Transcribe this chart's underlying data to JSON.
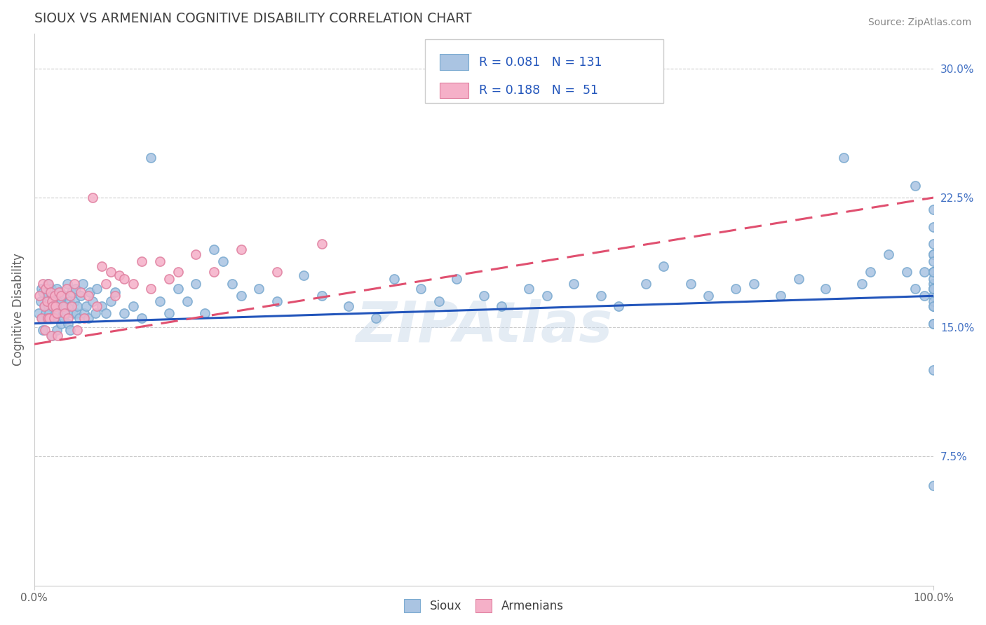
{
  "title": "SIOUX VS ARMENIAN COGNITIVE DISABILITY CORRELATION CHART",
  "source": "Source: ZipAtlas.com",
  "ylabel": "Cognitive Disability",
  "xlim": [
    0,
    1
  ],
  "ylim": [
    0,
    0.32
  ],
  "xticks": [
    0.0,
    1.0
  ],
  "xtick_labels": [
    "0.0%",
    "100.0%"
  ],
  "yticks": [
    0.075,
    0.15,
    0.225,
    0.3
  ],
  "ytick_labels": [
    "7.5%",
    "15.0%",
    "22.5%",
    "30.0%"
  ],
  "sioux_color": "#aac4e2",
  "sioux_edge_color": "#7aaad0",
  "armenian_color": "#f5b0c8",
  "armenian_edge_color": "#e080a0",
  "sioux_line_color": "#2255bb",
  "armenian_line_color": "#e05070",
  "R_sioux": 0.081,
  "N_sioux": 131,
  "R_armenian": 0.188,
  "N_armenian": 51,
  "legend_label_sioux": "Sioux",
  "legend_label_armenian": "Armenians",
  "watermark": "ZIPAtlas",
  "background_color": "#ffffff",
  "grid_color": "#cccccc",
  "title_color": "#404040",
  "sioux_line_start_y": 0.152,
  "sioux_line_end_y": 0.168,
  "armenian_line_start_y": 0.14,
  "armenian_line_end_y": 0.225,
  "sioux_x": [
    0.005,
    0.007,
    0.008,
    0.009,
    0.01,
    0.01,
    0.012,
    0.013,
    0.014,
    0.015,
    0.015,
    0.016,
    0.017,
    0.018,
    0.019,
    0.02,
    0.02,
    0.021,
    0.022,
    0.023,
    0.024,
    0.025,
    0.025,
    0.026,
    0.027,
    0.028,
    0.029,
    0.03,
    0.031,
    0.032,
    0.033,
    0.034,
    0.035,
    0.036,
    0.037,
    0.038,
    0.039,
    0.04,
    0.041,
    0.042,
    0.043,
    0.045,
    0.046,
    0.047,
    0.048,
    0.05,
    0.052,
    0.054,
    0.056,
    0.058,
    0.06,
    0.062,
    0.065,
    0.068,
    0.07,
    0.075,
    0.08,
    0.085,
    0.09,
    0.1,
    0.11,
    0.12,
    0.13,
    0.14,
    0.15,
    0.16,
    0.17,
    0.18,
    0.19,
    0.2,
    0.21,
    0.22,
    0.23,
    0.25,
    0.27,
    0.3,
    0.32,
    0.35,
    0.38,
    0.4,
    0.43,
    0.45,
    0.47,
    0.5,
    0.52,
    0.55,
    0.57,
    0.6,
    0.63,
    0.65,
    0.68,
    0.7,
    0.73,
    0.75,
    0.78,
    0.8,
    0.83,
    0.85,
    0.88,
    0.9,
    0.92,
    0.93,
    0.95,
    0.97,
    0.98,
    0.98,
    0.99,
    0.99,
    1.0,
    1.0,
    1.0,
    1.0,
    1.0,
    1.0,
    1.0,
    1.0,
    1.0,
    1.0,
    1.0,
    1.0,
    1.0,
    1.0,
    1.0,
    1.0,
    1.0,
    1.0,
    1.0,
    1.0,
    1.0,
    1.0,
    1.0
  ],
  "sioux_y": [
    0.158,
    0.165,
    0.172,
    0.155,
    0.148,
    0.17,
    0.162,
    0.158,
    0.155,
    0.175,
    0.168,
    0.162,
    0.158,
    0.155,
    0.172,
    0.145,
    0.168,
    0.162,
    0.155,
    0.165,
    0.158,
    0.148,
    0.172,
    0.162,
    0.158,
    0.165,
    0.17,
    0.152,
    0.165,
    0.158,
    0.155,
    0.168,
    0.162,
    0.158,
    0.175,
    0.152,
    0.165,
    0.148,
    0.162,
    0.17,
    0.158,
    0.165,
    0.172,
    0.158,
    0.162,
    0.155,
    0.168,
    0.175,
    0.158,
    0.162,
    0.155,
    0.17,
    0.165,
    0.158,
    0.172,
    0.162,
    0.158,
    0.165,
    0.17,
    0.158,
    0.162,
    0.155,
    0.248,
    0.165,
    0.158,
    0.172,
    0.165,
    0.175,
    0.158,
    0.195,
    0.188,
    0.175,
    0.168,
    0.172,
    0.165,
    0.18,
    0.168,
    0.162,
    0.155,
    0.178,
    0.172,
    0.165,
    0.178,
    0.168,
    0.162,
    0.172,
    0.168,
    0.175,
    0.168,
    0.162,
    0.175,
    0.185,
    0.175,
    0.168,
    0.172,
    0.175,
    0.168,
    0.178,
    0.172,
    0.248,
    0.175,
    0.182,
    0.192,
    0.182,
    0.232,
    0.172,
    0.182,
    0.168,
    0.058,
    0.125,
    0.152,
    0.162,
    0.168,
    0.175,
    0.182,
    0.192,
    0.198,
    0.208,
    0.218,
    0.165,
    0.172,
    0.182,
    0.192,
    0.172,
    0.182,
    0.162,
    0.152,
    0.178,
    0.188,
    0.172,
    0.182
  ],
  "armenian_x": [
    0.006,
    0.008,
    0.01,
    0.011,
    0.012,
    0.013,
    0.014,
    0.015,
    0.016,
    0.017,
    0.018,
    0.019,
    0.02,
    0.021,
    0.022,
    0.023,
    0.024,
    0.025,
    0.026,
    0.028,
    0.03,
    0.032,
    0.034,
    0.036,
    0.038,
    0.04,
    0.042,
    0.045,
    0.048,
    0.052,
    0.056,
    0.06,
    0.065,
    0.07,
    0.075,
    0.08,
    0.085,
    0.09,
    0.095,
    0.1,
    0.11,
    0.12,
    0.13,
    0.14,
    0.15,
    0.16,
    0.18,
    0.2,
    0.23,
    0.27,
    0.32
  ],
  "armenian_y": [
    0.168,
    0.155,
    0.175,
    0.162,
    0.148,
    0.172,
    0.165,
    0.155,
    0.175,
    0.155,
    0.17,
    0.145,
    0.165,
    0.162,
    0.155,
    0.168,
    0.162,
    0.158,
    0.145,
    0.17,
    0.168,
    0.162,
    0.158,
    0.172,
    0.155,
    0.168,
    0.162,
    0.175,
    0.148,
    0.17,
    0.155,
    0.168,
    0.225,
    0.162,
    0.185,
    0.175,
    0.182,
    0.168,
    0.18,
    0.178,
    0.175,
    0.188,
    0.172,
    0.188,
    0.178,
    0.182,
    0.192,
    0.182,
    0.195,
    0.182,
    0.198
  ]
}
